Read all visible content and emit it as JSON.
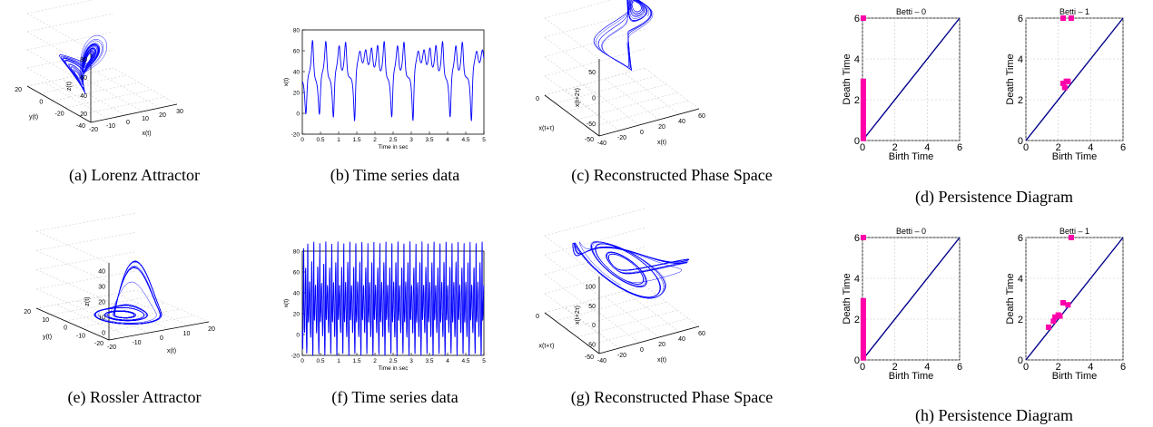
{
  "captions": {
    "a": "(a) Lorenz Attractor",
    "b": "(b) Time series data",
    "c": "(c) Reconstructed Phase Space",
    "d": "(d) Persistence Diagram",
    "e": "(e) Rossler Attractor",
    "f": "(f) Time series data",
    "g": "(g) Reconstructed Phase Space",
    "h": "(h) Persistence Diagram"
  },
  "colors": {
    "curve": "#0000ff",
    "diagonal": "#00008b",
    "points": "#ff00aa"
  },
  "chart_data": [
    {
      "id": "a",
      "type": "line",
      "projection": "3d",
      "system": "lorenz",
      "xlabel": "x(t)",
      "ylabel": "y(t)",
      "zlabel": "z(t)",
      "x_ticks": [
        "-20",
        "-10",
        "0",
        "10",
        "20",
        "30"
      ],
      "y_ticks": [
        "20",
        "0",
        "-20",
        "-40"
      ],
      "z_ticks": [
        "20",
        "40",
        "60",
        "80"
      ]
    },
    {
      "id": "b",
      "type": "line",
      "system": "lorenz",
      "xlabel": "Time in sec",
      "ylabel": "x(t)",
      "xlim": [
        0,
        5
      ],
      "ylim": [
        -20,
        80
      ],
      "x_ticks": [
        0,
        0.5,
        1,
        1.5,
        2,
        2.5,
        3,
        3.5,
        4,
        4.5,
        5
      ],
      "y_ticks": [
        -20,
        0,
        20,
        40,
        60,
        80
      ],
      "peaks": 19,
      "peak_value": 75,
      "trough_value": -10,
      "secondary_peak": 28
    },
    {
      "id": "c",
      "type": "line",
      "projection": "3d",
      "system": "lorenz",
      "xlabel": "x(t)",
      "ylabel": "x(t+τ)",
      "zlabel": "x(t+2τ)",
      "x_ticks": [
        "-40",
        "-20",
        "0",
        "20",
        "40",
        "60"
      ],
      "y_ticks": [
        "0",
        "-50"
      ],
      "z_ticks": [
        "-50",
        "0",
        "50"
      ]
    },
    {
      "id": "d",
      "type": "scatter",
      "system": "lorenz",
      "panels": [
        {
          "title": "Betti – 0",
          "xlabel": "Birth Time",
          "ylabel": "Death Time",
          "xlim": [
            0,
            6
          ],
          "ylim": [
            0,
            6
          ],
          "ticks": [
            0,
            2,
            4,
            6
          ],
          "points": [
            [
              0.05,
              6
            ],
            [
              0.05,
              0.1
            ],
            [
              0.05,
              0.3
            ],
            [
              0.05,
              0.5
            ],
            [
              0.05,
              0.7
            ],
            [
              0.05,
              0.9
            ],
            [
              0.05,
              1.1
            ],
            [
              0.05,
              1.3
            ],
            [
              0.05,
              1.5
            ],
            [
              0.05,
              1.7
            ],
            [
              0.05,
              1.9
            ],
            [
              0.05,
              2.1
            ],
            [
              0.05,
              2.3
            ],
            [
              0.05,
              2.5
            ],
            [
              0.05,
              2.7
            ],
            [
              0.05,
              2.9
            ]
          ]
        },
        {
          "title": "Betti – 1",
          "xlabel": "Birth Time",
          "ylabel": "Death Time",
          "xlim": [
            0,
            6
          ],
          "ylim": [
            0,
            6
          ],
          "ticks": [
            0,
            2,
            4,
            6
          ],
          "points": [
            [
              2.3,
              6
            ],
            [
              2.8,
              6
            ],
            [
              2.3,
              2.8
            ],
            [
              2.4,
              2.6
            ],
            [
              2.5,
              2.9
            ],
            [
              2.6,
              2.9
            ]
          ]
        }
      ]
    },
    {
      "id": "e",
      "type": "line",
      "projection": "3d",
      "system": "rossler",
      "xlabel": "x(t)",
      "ylabel": "y(t)",
      "zlabel": "z(t)",
      "x_ticks": [
        "-20",
        "-10",
        "0",
        "10",
        "20"
      ],
      "y_ticks": [
        "20",
        "10",
        "0",
        "-10",
        "-20"
      ],
      "z_ticks": [
        "0",
        "10",
        "20",
        "30",
        "40"
      ]
    },
    {
      "id": "f",
      "type": "line",
      "system": "rossler",
      "xlabel": "Time in sec",
      "ylabel": "x(t)",
      "xlim": [
        0,
        5
      ],
      "ylim": [
        -20,
        80
      ],
      "x_ticks": [
        0,
        0.5,
        1,
        1.5,
        2,
        2.5,
        3,
        3.5,
        4,
        4.5,
        5
      ],
      "y_ticks": [
        -20,
        0,
        20,
        40,
        60,
        80
      ],
      "peaks": 18,
      "peak_value": 70,
      "trough_value": -5
    },
    {
      "id": "g",
      "type": "line",
      "projection": "3d",
      "system": "rossler",
      "xlabel": "x(t)",
      "ylabel": "x(t+τ)",
      "zlabel": "x(t+2τ)",
      "x_ticks": [
        "-40",
        "-20",
        "0",
        "20",
        "40",
        "60"
      ],
      "y_ticks": [
        "0",
        "-50"
      ],
      "z_ticks": [
        "-50",
        "0",
        "50",
        "100"
      ]
    },
    {
      "id": "h",
      "type": "scatter",
      "system": "rossler",
      "panels": [
        {
          "title": "Betti – 0",
          "xlabel": "Birth Time",
          "ylabel": "Death Time",
          "xlim": [
            0,
            6
          ],
          "ylim": [
            0,
            6
          ],
          "ticks": [
            0,
            2,
            4,
            6
          ],
          "points": [
            [
              0.05,
              6
            ],
            [
              0.05,
              0.1
            ],
            [
              0.05,
              0.3
            ],
            [
              0.05,
              0.5
            ],
            [
              0.05,
              0.7
            ],
            [
              0.05,
              0.9
            ],
            [
              0.05,
              1.1
            ],
            [
              0.05,
              1.3
            ],
            [
              0.05,
              1.5
            ],
            [
              0.05,
              1.7
            ],
            [
              0.05,
              1.9
            ],
            [
              0.05,
              2.1
            ],
            [
              0.05,
              2.3
            ],
            [
              0.05,
              2.5
            ],
            [
              0.05,
              2.7
            ],
            [
              0.05,
              2.9
            ]
          ]
        },
        {
          "title": "Betti – 1",
          "xlabel": "Birth Time",
          "ylabel": "Death Time",
          "xlim": [
            0,
            6
          ],
          "ylim": [
            0,
            6
          ],
          "ticks": [
            0,
            2,
            4,
            6
          ],
          "points": [
            [
              2.8,
              6
            ],
            [
              1.4,
              1.6
            ],
            [
              1.7,
              1.9
            ],
            [
              1.8,
              2.1
            ],
            [
              2.0,
              2.2
            ],
            [
              2.1,
              2.15
            ],
            [
              2.3,
              2.8
            ],
            [
              2.6,
              2.7
            ]
          ]
        }
      ]
    }
  ]
}
